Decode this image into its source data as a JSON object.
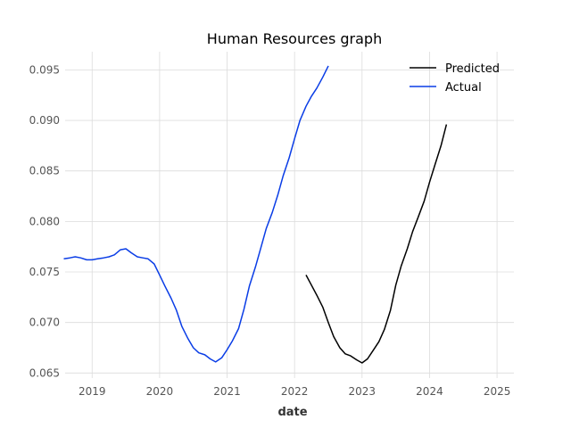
{
  "chart_data": {
    "type": "line",
    "title": "Human Resources graph",
    "xlabel": "date",
    "ylabel": "",
    "xlim": [
      2018.6,
      2025.25
    ],
    "ylim": [
      0.0645,
      0.0968
    ],
    "x_ticks": [
      2019,
      2020,
      2021,
      2022,
      2023,
      2024,
      2025
    ],
    "y_ticks": [
      0.065,
      0.07,
      0.075,
      0.08,
      0.085,
      0.09,
      0.095
    ],
    "y_tick_labels": [
      "0.065",
      "0.070",
      "0.075",
      "0.080",
      "0.085",
      "0.090",
      "0.095"
    ],
    "grid": true,
    "legend_position": "top-right",
    "series": [
      {
        "name": "Predicted",
        "color": "#000000",
        "x": [
          2022.17,
          2022.25,
          2022.33,
          2022.42,
          2022.5,
          2022.58,
          2022.67,
          2022.75,
          2022.83,
          2022.92,
          2023.0,
          2023.08,
          2023.17,
          2023.25,
          2023.33,
          2023.42,
          2023.5,
          2023.58,
          2023.67,
          2023.75,
          2023.83,
          2023.92,
          2024.0,
          2024.08,
          2024.17,
          2024.25
        ],
        "values": [
          0.0747,
          0.0737,
          0.0727,
          0.0715,
          0.07,
          0.0686,
          0.0675,
          0.0669,
          0.0667,
          0.0663,
          0.066,
          0.0664,
          0.0673,
          0.0681,
          0.0693,
          0.0712,
          0.0737,
          0.0756,
          0.0773,
          0.079,
          0.0804,
          0.082,
          0.0839,
          0.0856,
          0.0875,
          0.0896
        ]
      },
      {
        "name": "Actual",
        "color": "#0a3de6",
        "x": [
          2018.58,
          2018.67,
          2018.75,
          2018.83,
          2018.92,
          2019.0,
          2019.08,
          2019.17,
          2019.25,
          2019.33,
          2019.42,
          2019.5,
          2019.58,
          2019.67,
          2019.75,
          2019.83,
          2019.92,
          2020.0,
          2020.08,
          2020.17,
          2020.25,
          2020.33,
          2020.42,
          2020.5,
          2020.58,
          2020.67,
          2020.75,
          2020.83,
          2020.92,
          2021.0,
          2021.08,
          2021.17,
          2021.25,
          2021.33,
          2021.42,
          2021.5,
          2021.58,
          2021.67,
          2021.75,
          2021.83,
          2021.92,
          2022.0,
          2022.08,
          2022.17,
          2022.25,
          2022.33,
          2022.42,
          2022.5
        ],
        "values": [
          0.0763,
          0.0764,
          0.0765,
          0.0764,
          0.0762,
          0.0762,
          0.0763,
          0.0764,
          0.0765,
          0.0767,
          0.0772,
          0.0773,
          0.0769,
          0.0765,
          0.0764,
          0.0763,
          0.0758,
          0.0747,
          0.0736,
          0.0724,
          0.0712,
          0.0696,
          0.0684,
          0.0675,
          0.067,
          0.0668,
          0.0664,
          0.0661,
          0.0665,
          0.0673,
          0.0682,
          0.0694,
          0.0713,
          0.0736,
          0.0755,
          0.0774,
          0.0793,
          0.0809,
          0.0826,
          0.0845,
          0.0863,
          0.0882,
          0.09,
          0.0914,
          0.0924,
          0.0932,
          0.0943,
          0.0954
        ]
      }
    ]
  }
}
